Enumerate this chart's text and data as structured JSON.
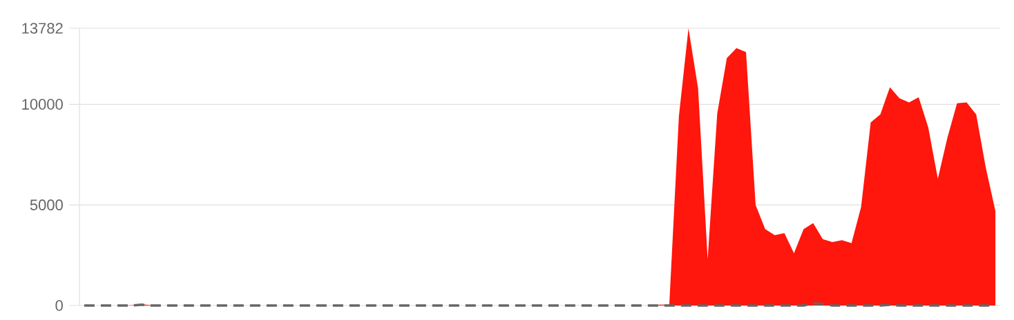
{
  "chart_data": {
    "type": "area",
    "categories": [
      null,
      null,
      null,
      null,
      null,
      null,
      null,
      null,
      null,
      null,
      null,
      null,
      null,
      null,
      null,
      null,
      null,
      null,
      null,
      null,
      null,
      null,
      null,
      null,
      null,
      null,
      null,
      null,
      null,
      null,
      null,
      null,
      null,
      null,
      null,
      null,
      null,
      null,
      null,
      null,
      null,
      null,
      null,
      null,
      null,
      null,
      null,
      null,
      null,
      null,
      null,
      null,
      null,
      null,
      null,
      null,
      null,
      null,
      null,
      null,
      null,
      null,
      null,
      null,
      null,
      null,
      null,
      null,
      null,
      null,
      null,
      null,
      null,
      null,
      null,
      null,
      null,
      null,
      null,
      null,
      null,
      null,
      null,
      null,
      null,
      null,
      null,
      null,
      null,
      null,
      null,
      null,
      null,
      null,
      null,
      null
    ],
    "series": [
      {
        "color": "#ff160c",
        "values": [
          0,
          0,
          0,
          0,
          0,
          20,
          60,
          20,
          0,
          0,
          0,
          0,
          0,
          0,
          0,
          0,
          0,
          0,
          0,
          0,
          0,
          0,
          0,
          0,
          0,
          0,
          0,
          0,
          0,
          0,
          0,
          0,
          0,
          0,
          0,
          0,
          0,
          0,
          0,
          0,
          0,
          0,
          0,
          0,
          0,
          0,
          0,
          0,
          0,
          0,
          0,
          0,
          0,
          0,
          0,
          0,
          0,
          0,
          0,
          0,
          40,
          40,
          9400,
          13782,
          10800,
          2300,
          9550,
          12300,
          12800,
          12600,
          5000,
          3800,
          3500,
          3600,
          2600,
          3800,
          4100,
          3300,
          3150,
          3250,
          3100,
          4900,
          9100,
          9500,
          10850,
          10300,
          10100,
          10350,
          8850,
          6300,
          8350,
          10050,
          10100,
          9500,
          6850,
          4700
        ]
      },
      {
        "type": "line",
        "color": "#666666",
        "line_style": "dashed",
        "values": [
          0,
          0,
          0,
          0,
          0,
          0,
          40,
          0,
          0,
          0,
          0,
          0,
          0,
          0,
          0,
          0,
          0,
          0,
          0,
          0,
          0,
          0,
          0,
          0,
          0,
          0,
          0,
          0,
          0,
          0,
          0,
          0,
          0,
          0,
          0,
          0,
          0,
          0,
          0,
          0,
          0,
          0,
          0,
          0,
          0,
          0,
          0,
          0,
          0,
          0,
          0,
          0,
          0,
          0,
          0,
          0,
          0,
          0,
          0,
          0,
          0,
          0,
          0,
          0,
          0,
          0,
          0,
          0,
          0,
          0,
          0,
          0,
          0,
          0,
          0,
          0,
          100,
          80,
          0,
          0,
          0,
          0,
          0,
          0,
          30,
          0,
          0,
          0,
          0,
          0,
          0,
          0,
          0,
          0,
          0,
          0
        ]
      }
    ],
    "ylim": [
      0,
      13782
    ],
    "yticks": [
      0,
      5000,
      10000,
      13782
    ],
    "grid": "y",
    "tick_labels": "y"
  }
}
